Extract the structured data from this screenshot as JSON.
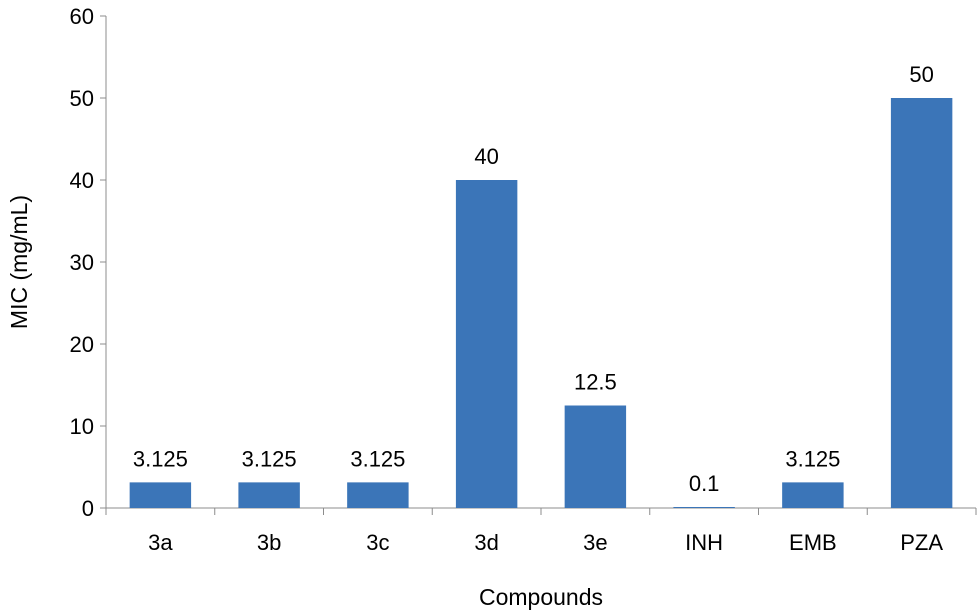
{
  "chart_data": {
    "type": "bar",
    "title": "",
    "xlabel": "Compounds",
    "ylabel": "MIC  (mg/mL)",
    "categories": [
      "3a",
      "3b",
      "3c",
      "3d",
      "3e",
      "INH",
      "EMB",
      "PZA"
    ],
    "values": [
      3.125,
      3.125,
      3.125,
      40,
      12.5,
      0.1,
      3.125,
      50
    ],
    "data_labels": [
      "3.125",
      "3.125",
      "3.125",
      "40",
      "12.5",
      "0.1",
      "3.125",
      "50"
    ],
    "ylim": [
      0,
      60
    ],
    "yticks": [
      0,
      10,
      20,
      30,
      40,
      50,
      60
    ],
    "grid": false,
    "legend": "none",
    "bar_color": "#3b75b8"
  }
}
